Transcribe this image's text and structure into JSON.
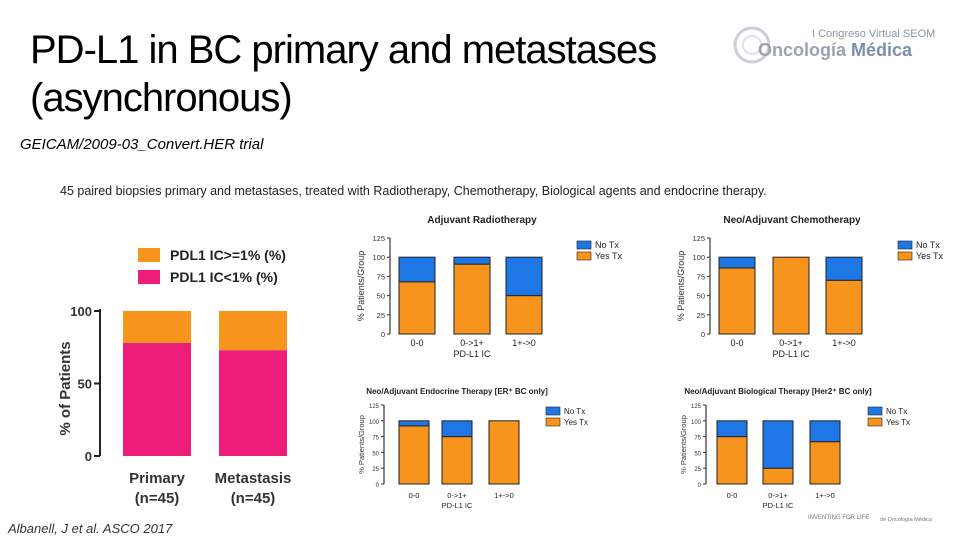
{
  "slide": {
    "title": "PD-L1 in BC primary and metastases (asynchronous)",
    "subtitle": "GEICAM/2009-03_Convert.HER trial",
    "description": "45 paired biopsies primary and metastases, treated with Radiotherapy, Chemotherapy, Biological agents and endocrine therapy.",
    "citation": "Albanell, J et al. ASCO 2017",
    "logo_congress": "I Congreso Virtual SEOM",
    "logo_main_a": "Oncología",
    "logo_main_b": "Médica",
    "footer_a": "INVENTING FOR LIFE",
    "footer_b": "de Oncología Médica"
  },
  "colors": {
    "orange": "#f7941d",
    "blue": "#1f77e6",
    "pink": "#ed1e79",
    "primary_orange": "#f7941d"
  },
  "chart_data": [
    {
      "type": "bar",
      "stacked": true,
      "title": "",
      "categories": [
        "Primary\n(n=45)",
        "Metastasis\n(n=45)"
      ],
      "category_lines": [
        [
          "Primary",
          "(n=45)"
        ],
        [
          "Metastasis",
          "(n=45)"
        ]
      ],
      "series": [
        {
          "name": "PDL1 IC<1% (%)",
          "values": [
            78,
            73
          ]
        },
        {
          "name": "PDL1 IC>=1% (%)",
          "values": [
            22,
            27
          ]
        }
      ],
      "ylabel": "% of Patients",
      "yticks": [
        0,
        50,
        100
      ],
      "ylim": [
        0,
        100
      ],
      "legend": "top",
      "legend_order": [
        "PDL1 IC>=1% (%)",
        "PDL1 IC<1% (%)"
      ]
    },
    {
      "type": "bar",
      "stacked": true,
      "title": "Adjuvant Radiotherapy",
      "categories": [
        "0-0",
        "0->1+",
        "1+->0"
      ],
      "series": [
        {
          "name": "Yes Tx",
          "values": [
            68,
            91,
            50
          ]
        },
        {
          "name": "No Tx",
          "values": [
            32,
            9,
            50
          ]
        }
      ],
      "xlabel": "PD-L1 IC",
      "ylabel": "% Patients/Group",
      "yticks": [
        0,
        25,
        50,
        75,
        100,
        125
      ],
      "ylim": [
        0,
        125
      ],
      "legend": "top-right",
      "legend_order": [
        "No Tx",
        "Yes Tx"
      ]
    },
    {
      "type": "bar",
      "stacked": true,
      "title": "Neo/Adjuvant Chemotherapy",
      "categories": [
        "0-0",
        "0->1+",
        "1+->0"
      ],
      "series": [
        {
          "name": "Yes Tx",
          "values": [
            86,
            100,
            70
          ]
        },
        {
          "name": "No Tx",
          "values": [
            14,
            0,
            30
          ]
        }
      ],
      "xlabel": "PD-L1 IC",
      "ylabel": "% Patients/Group",
      "yticks": [
        0,
        25,
        50,
        75,
        100,
        125
      ],
      "ylim": [
        0,
        125
      ],
      "legend": "top-right",
      "legend_order": [
        "No Tx",
        "Yes Tx"
      ]
    },
    {
      "type": "bar",
      "stacked": true,
      "title": "Neo/Adjuvant Endocrine Therapy [ER⁺ BC only]",
      "categories": [
        "0-0",
        "0->1+",
        "1+->0"
      ],
      "series": [
        {
          "name": "Yes Tx",
          "values": [
            92,
            75,
            100
          ]
        },
        {
          "name": "No Tx",
          "values": [
            8,
            25,
            0
          ]
        }
      ],
      "xlabel": "PD-L1 IC",
      "ylabel": "% Patients/Group",
      "yticks": [
        0,
        25,
        50,
        75,
        100,
        125
      ],
      "ylim": [
        0,
        125
      ],
      "legend": "top-right",
      "legend_order": [
        "No Tx",
        "Yes Tx"
      ]
    },
    {
      "type": "bar",
      "stacked": true,
      "title": "Neo/Adjuvant Biological Therapy [Her2⁺ BC only]",
      "categories": [
        "0-0",
        "0->1+",
        "1+->0"
      ],
      "series": [
        {
          "name": "Yes Tx",
          "values": [
            75,
            25,
            67
          ]
        },
        {
          "name": "No Tx",
          "values": [
            25,
            75,
            33
          ]
        }
      ],
      "xlabel": "PD-L1 IC",
      "ylabel": "% Patients/Group",
      "yticks": [
        0,
        25,
        50,
        75,
        100,
        125
      ],
      "ylim": [
        0,
        125
      ],
      "legend": "top-right",
      "legend_order": [
        "No Tx",
        "Yes Tx"
      ]
    }
  ]
}
